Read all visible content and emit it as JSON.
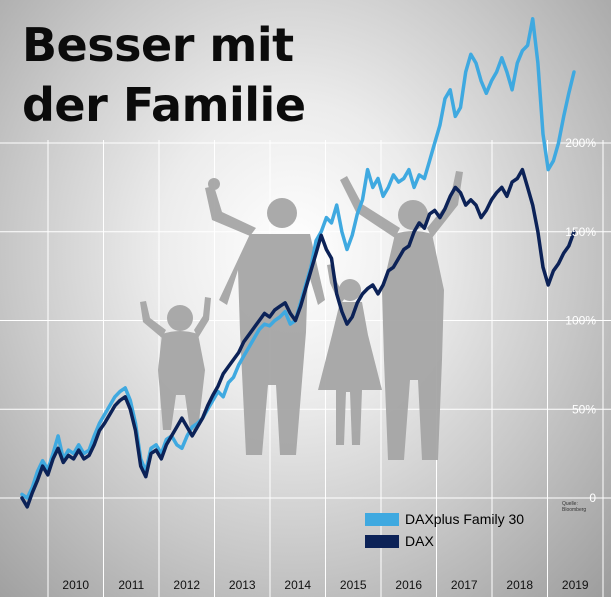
{
  "title": {
    "line1": "Besser mit",
    "line2": "der Familie"
  },
  "source": {
    "label": "Quelle:",
    "name": "Bloomberg"
  },
  "legend": [
    {
      "label": "DAXplus Family 30",
      "color": "#3fa9e0"
    },
    {
      "label": "DAX",
      "color": "#0c2257"
    }
  ],
  "chart_data": {
    "type": "line",
    "x_labels": [
      "2010",
      "2011",
      "2012",
      "2013",
      "2014",
      "2015",
      "2016",
      "2017",
      "2018",
      "2019"
    ],
    "y_ticks": [
      "0",
      "50%",
      "100%",
      "150%",
      "200%"
    ],
    "ylim": [
      0,
      250
    ],
    "grid": true,
    "legend_position": "bottom-right",
    "series": [
      {
        "name": "DAXplus Family 30",
        "color": "#3fa9e0",
        "values": [
          2,
          0,
          6,
          15,
          21,
          16,
          25,
          35,
          22,
          27,
          25,
          30,
          25,
          27,
          35,
          42,
          47,
          52,
          57,
          60,
          62,
          55,
          42,
          22,
          15,
          28,
          30,
          25,
          33,
          35,
          30,
          28,
          35,
          40,
          42,
          45,
          50,
          55,
          60,
          57,
          65,
          68,
          75,
          80,
          85,
          90,
          95,
          98,
          97,
          100,
          102,
          105,
          98,
          100,
          110,
          120,
          130,
          145,
          150,
          158,
          155,
          165,
          150,
          140,
          148,
          160,
          168,
          185,
          175,
          180,
          170,
          175,
          182,
          178,
          180,
          185,
          175,
          182,
          180,
          190,
          200,
          210,
          225,
          230,
          215,
          220,
          240,
          250,
          245,
          235,
          228,
          235,
          240,
          248,
          240,
          230,
          245,
          252,
          255,
          270,
          245,
          205,
          185,
          190,
          200,
          215,
          228,
          240
        ]
      },
      {
        "name": "DAX",
        "color": "#0c2257",
        "values": [
          0,
          -5,
          3,
          10,
          18,
          13,
          22,
          28,
          20,
          24,
          22,
          27,
          22,
          24,
          30,
          38,
          42,
          47,
          52,
          55,
          57,
          50,
          38,
          18,
          12,
          25,
          27,
          22,
          30,
          35,
          40,
          45,
          40,
          35,
          40,
          45,
          52,
          58,
          63,
          70,
          74,
          78,
          82,
          88,
          92,
          96,
          100,
          104,
          102,
          106,
          108,
          110,
          104,
          100,
          108,
          118,
          128,
          138,
          148,
          140,
          135,
          115,
          105,
          98,
          102,
          110,
          115,
          118,
          120,
          115,
          120,
          128,
          130,
          135,
          140,
          142,
          150,
          155,
          152,
          160,
          162,
          158,
          163,
          170,
          175,
          172,
          165,
          168,
          165,
          158,
          162,
          168,
          172,
          175,
          170,
          178,
          180,
          185,
          175,
          165,
          150,
          130,
          120,
          128,
          132,
          138,
          142,
          150
        ]
      }
    ]
  }
}
